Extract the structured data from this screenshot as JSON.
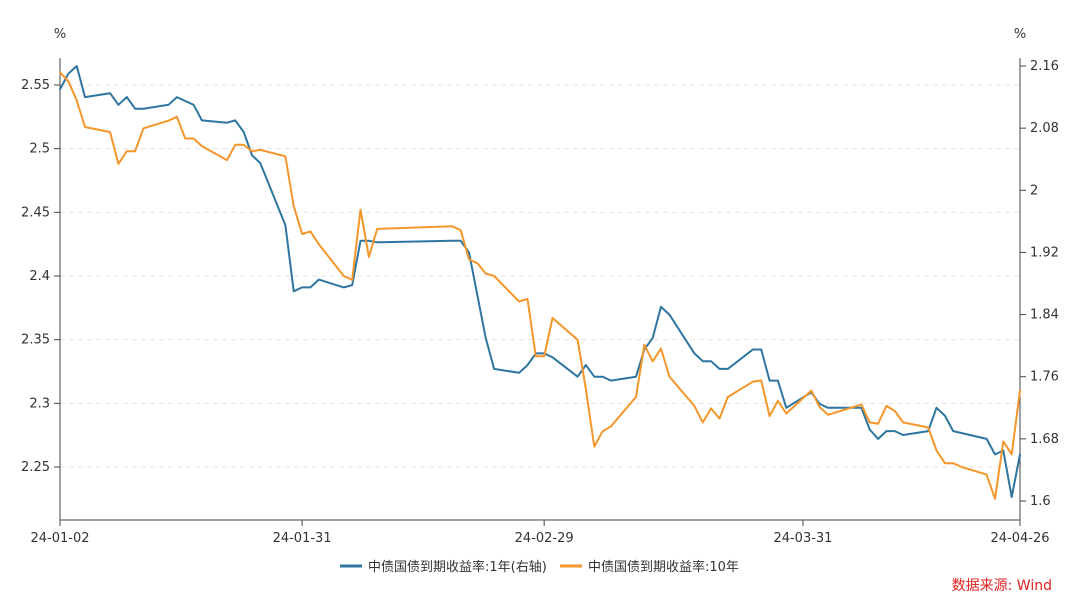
{
  "chart_data": {
    "type": "line",
    "left_axis_unit": "%",
    "right_axis_unit": "%",
    "left_axis": {
      "min": 2.21,
      "max": 2.57,
      "ticks": [
        "2.55",
        "2.5",
        "2.45",
        "2.4",
        "2.35",
        "2.3",
        "2.25"
      ]
    },
    "right_axis": {
      "min": 1.57,
      "max": 2.18,
      "ticks": [
        "2.16",
        "2.08",
        "2",
        "1.92",
        "1.84",
        "1.76",
        "1.68",
        "1.6"
      ]
    },
    "x_ticks": [
      "24-01-02",
      "24-01-31",
      "24-02-29",
      "24-03-31",
      "24-04-26"
    ],
    "x_domain": [
      "2024-01-02",
      "2024-04-26"
    ],
    "grid": true,
    "legend_position": "bottom",
    "series": [
      {
        "name": "中债国债到期收益率:1年(右轴)",
        "axis": "right",
        "color": "#2e75a0",
        "points": [
          [
            "2024-01-02",
            2.13
          ],
          [
            "2024-01-03",
            2.15
          ],
          [
            "2024-01-04",
            2.16
          ],
          [
            "2024-01-05",
            2.12
          ],
          [
            "2024-01-08",
            2.125
          ],
          [
            "2024-01-09",
            2.11
          ],
          [
            "2024-01-10",
            2.12
          ],
          [
            "2024-01-11",
            2.105
          ],
          [
            "2024-01-12",
            2.105
          ],
          [
            "2024-01-15",
            2.11
          ],
          [
            "2024-01-16",
            2.12
          ],
          [
            "2024-01-17",
            2.115
          ],
          [
            "2024-01-18",
            2.11
          ],
          [
            "2024-01-19",
            2.09
          ],
          [
            "2024-01-22",
            2.087
          ],
          [
            "2024-01-23",
            2.09
          ],
          [
            "2024-01-24",
            2.075
          ],
          [
            "2024-01-25",
            2.045
          ],
          [
            "2024-01-26",
            2.035
          ],
          [
            "2024-01-29",
            1.955
          ],
          [
            "2024-01-30",
            1.87
          ],
          [
            "2024-01-31",
            1.875
          ],
          [
            "2024-02-01",
            1.875
          ],
          [
            "2024-02-02",
            1.885
          ],
          [
            "2024-02-05",
            1.875
          ],
          [
            "2024-02-06",
            1.878
          ],
          [
            "2024-02-07",
            1.935
          ],
          [
            "2024-02-08",
            1.935
          ],
          [
            "2024-02-09",
            1.933
          ],
          [
            "2024-02-18",
            1.935
          ],
          [
            "2024-02-19",
            1.935
          ],
          [
            "2024-02-20",
            1.92
          ],
          [
            "2024-02-22",
            1.81
          ],
          [
            "2024-02-23",
            1.77
          ],
          [
            "2024-02-26",
            1.765
          ],
          [
            "2024-02-27",
            1.775
          ],
          [
            "2024-02-28",
            1.79
          ],
          [
            "2024-02-29",
            1.79
          ],
          [
            "2024-03-01",
            1.785
          ],
          [
            "2024-03-04",
            1.76
          ],
          [
            "2024-03-05",
            1.775
          ],
          [
            "2024-03-06",
            1.76
          ],
          [
            "2024-03-07",
            1.76
          ],
          [
            "2024-03-08",
            1.755
          ],
          [
            "2024-03-11",
            1.76
          ],
          [
            "2024-03-12",
            1.795
          ],
          [
            "2024-03-13",
            1.81
          ],
          [
            "2024-03-14",
            1.85
          ],
          [
            "2024-03-15",
            1.84
          ],
          [
            "2024-03-18",
            1.79
          ],
          [
            "2024-03-19",
            1.78
          ],
          [
            "2024-03-20",
            1.78
          ],
          [
            "2024-03-21",
            1.77
          ],
          [
            "2024-03-22",
            1.77
          ],
          [
            "2024-03-25",
            1.795
          ],
          [
            "2024-03-26",
            1.795
          ],
          [
            "2024-03-27",
            1.755
          ],
          [
            "2024-03-28",
            1.755
          ],
          [
            "2024-03-29",
            1.72
          ],
          [
            "2024-04-01",
            1.74
          ],
          [
            "2024-04-02",
            1.725
          ],
          [
            "2024-04-03",
            1.72
          ],
          [
            "2024-04-07",
            1.72
          ],
          [
            "2024-04-08",
            1.692
          ],
          [
            "2024-04-09",
            1.68
          ],
          [
            "2024-04-10",
            1.69
          ],
          [
            "2024-04-11",
            1.69
          ],
          [
            "2024-04-12",
            1.685
          ],
          [
            "2024-04-15",
            1.69
          ],
          [
            "2024-04-16",
            1.72
          ],
          [
            "2024-04-17",
            1.71
          ],
          [
            "2024-04-18",
            1.69
          ],
          [
            "2024-04-22",
            1.68
          ],
          [
            "2024-04-23",
            1.66
          ],
          [
            "2024-04-24",
            1.665
          ],
          [
            "2024-04-25",
            1.605
          ],
          [
            "2024-04-26",
            1.66
          ]
        ]
      },
      {
        "name": "中债国债到期收益率:10年",
        "axis": "left",
        "color": "#f4962a",
        "points": [
          [
            "2024-01-02",
            2.56
          ],
          [
            "2024-01-03",
            2.553
          ],
          [
            "2024-01-04",
            2.538
          ],
          [
            "2024-01-05",
            2.517
          ],
          [
            "2024-01-08",
            2.513
          ],
          [
            "2024-01-09",
            2.488
          ],
          [
            "2024-01-10",
            2.498
          ],
          [
            "2024-01-11",
            2.498
          ],
          [
            "2024-01-12",
            2.516
          ],
          [
            "2024-01-15",
            2.522
          ],
          [
            "2024-01-16",
            2.525
          ],
          [
            "2024-01-17",
            2.508
          ],
          [
            "2024-01-18",
            2.508
          ],
          [
            "2024-01-19",
            2.502
          ],
          [
            "2024-01-22",
            2.491
          ],
          [
            "2024-01-23",
            2.503
          ],
          [
            "2024-01-24",
            2.503
          ],
          [
            "2024-01-25",
            2.498
          ],
          [
            "2024-01-26",
            2.499
          ],
          [
            "2024-01-29",
            2.494
          ],
          [
            "2024-01-30",
            2.455
          ],
          [
            "2024-01-31",
            2.433
          ],
          [
            "2024-02-01",
            2.435
          ],
          [
            "2024-02-02",
            2.425
          ],
          [
            "2024-02-05",
            2.4
          ],
          [
            "2024-02-06",
            2.397
          ],
          [
            "2024-02-07",
            2.452
          ],
          [
            "2024-02-08",
            2.415
          ],
          [
            "2024-02-09",
            2.437
          ],
          [
            "2024-02-18",
            2.439
          ],
          [
            "2024-02-19",
            2.436
          ],
          [
            "2024-02-20",
            2.413
          ],
          [
            "2024-02-21",
            2.41
          ],
          [
            "2024-02-22",
            2.402
          ],
          [
            "2024-02-23",
            2.4
          ],
          [
            "2024-02-26",
            2.38
          ],
          [
            "2024-02-27",
            2.382
          ],
          [
            "2024-02-28",
            2.337
          ],
          [
            "2024-02-29",
            2.337
          ],
          [
            "2024-03-01",
            2.367
          ],
          [
            "2024-03-04",
            2.35
          ],
          [
            "2024-03-05",
            2.311
          ],
          [
            "2024-03-06",
            2.266
          ],
          [
            "2024-03-07",
            2.278
          ],
          [
            "2024-03-08",
            2.282
          ],
          [
            "2024-03-11",
            2.305
          ],
          [
            "2024-03-12",
            2.346
          ],
          [
            "2024-03-13",
            2.333
          ],
          [
            "2024-03-14",
            2.343
          ],
          [
            "2024-03-15",
            2.321
          ],
          [
            "2024-03-18",
            2.298
          ],
          [
            "2024-03-19",
            2.285
          ],
          [
            "2024-03-20",
            2.296
          ],
          [
            "2024-03-21",
            2.288
          ],
          [
            "2024-03-22",
            2.305
          ],
          [
            "2024-03-25",
            2.317
          ],
          [
            "2024-03-26",
            2.318
          ],
          [
            "2024-03-27",
            2.29
          ],
          [
            "2024-03-28",
            2.302
          ],
          [
            "2024-03-29",
            2.292
          ],
          [
            "2024-04-01",
            2.31
          ],
          [
            "2024-04-02",
            2.297
          ],
          [
            "2024-04-03",
            2.291
          ],
          [
            "2024-04-07",
            2.299
          ],
          [
            "2024-04-08",
            2.285
          ],
          [
            "2024-04-09",
            2.284
          ],
          [
            "2024-04-10",
            2.298
          ],
          [
            "2024-04-11",
            2.294
          ],
          [
            "2024-04-12",
            2.285
          ],
          [
            "2024-04-15",
            2.281
          ],
          [
            "2024-04-16",
            2.263
          ],
          [
            "2024-04-17",
            2.253
          ],
          [
            "2024-04-18",
            2.253
          ],
          [
            "2024-04-19",
            2.25
          ],
          [
            "2024-04-22",
            2.244
          ],
          [
            "2024-04-23",
            2.225
          ],
          [
            "2024-04-24",
            2.27
          ],
          [
            "2024-04-25",
            2.26
          ],
          [
            "2024-04-26",
            2.31
          ]
        ]
      }
    ]
  },
  "source_note": "数据来源: Wind"
}
